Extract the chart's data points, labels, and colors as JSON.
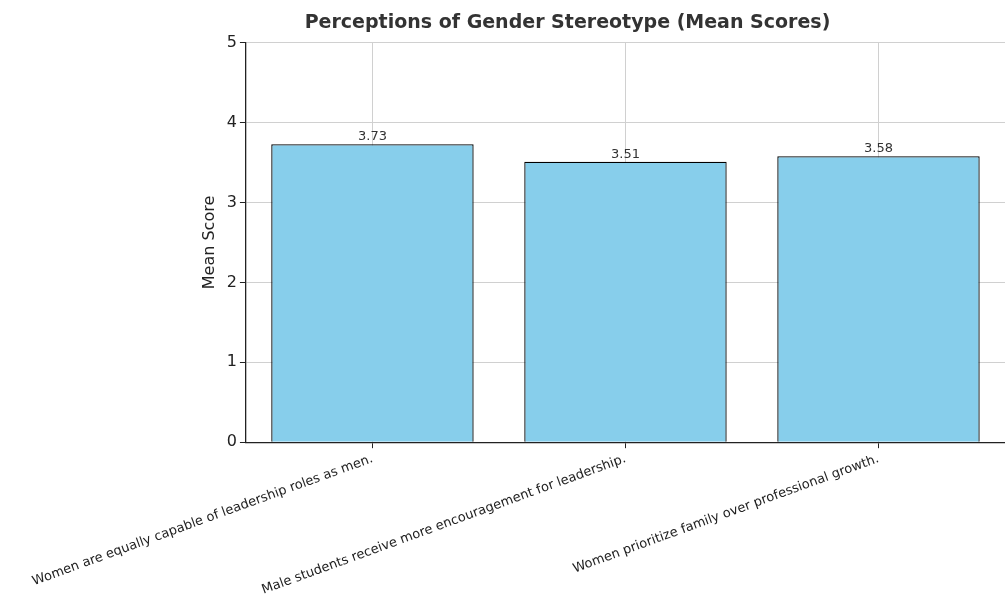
{
  "chart_data": {
    "type": "bar",
    "title": "Perceptions of Gender Stereotype (Mean Scores)",
    "ylabel": "Mean Score",
    "categories": [
      "Women are equally capable of leadership roles as men.",
      "Male students receive more encouragement for leadership.",
      "Women prioritize family over professional growth."
    ],
    "values": [
      3.73,
      3.51,
      3.58
    ],
    "color": "#87ceeb",
    "ylim": [
      0,
      5
    ],
    "yticks": [
      0,
      1,
      2,
      3,
      4,
      5
    ],
    "grid": true,
    "data_labels": true
  }
}
